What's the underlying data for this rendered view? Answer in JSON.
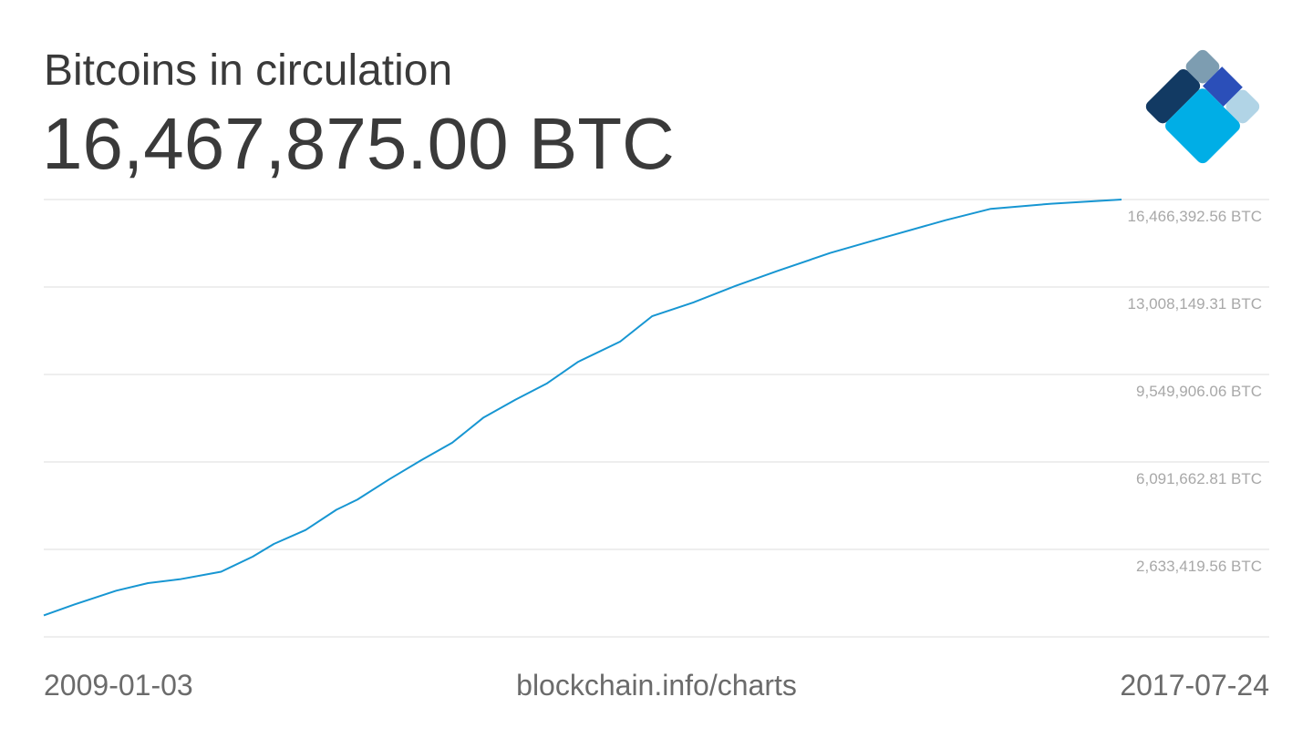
{
  "header": {
    "title": "Bitcoins in circulation",
    "value": "16,467,875.00 BTC"
  },
  "footer": {
    "start_date": "2009-01-03",
    "source": "blockchain.info/charts",
    "end_date": "2017-07-24"
  },
  "logo": {
    "icon": "blockchain-logo-icon",
    "colors": [
      "#7d9db1",
      "#123a63",
      "#2b4fb9",
      "#00aee6",
      "#b1d4e6"
    ]
  },
  "colors": {
    "line": "#1796d2",
    "grid": "#dddddd",
    "tick_text": "#a8a8a8",
    "text": "#3a3a3a",
    "footer_text": "#6b6b6b"
  },
  "chart_data": {
    "type": "line",
    "title": "Bitcoins in circulation",
    "xlabel": "",
    "ylabel": "",
    "xlim": [
      "2009-01-03",
      "2017-07-24"
    ],
    "ylim": [
      -825000,
      16466392.56
    ],
    "grid": true,
    "legend": "none",
    "y_ticks": [
      {
        "value": 16466392.56,
        "label": "16,466,392.56 BTC"
      },
      {
        "value": 13008149.31,
        "label": "13,008,149.31 BTC"
      },
      {
        "value": 9549906.06,
        "label": "9,549,906.06 BTC"
      },
      {
        "value": 6091662.81,
        "label": "6,091,662.81 BTC"
      },
      {
        "value": 2633419.56,
        "label": "2,633,419.56 BTC"
      }
    ],
    "series": [
      {
        "x": [
          "2009-01-03",
          "2009-04-01",
          "2009-08-01",
          "2009-11-01",
          "2010-02-01",
          "2010-06-01",
          "2010-09-01",
          "2010-11-01",
          "2011-02-01",
          "2011-05-01",
          "2011-07-01",
          "2011-10-01",
          "2012-01-01",
          "2012-04-01",
          "2012-07-01",
          "2012-10-01",
          "2013-01-01",
          "2013-04-01",
          "2013-08-01",
          "2013-11-01",
          "2014-03-01",
          "2014-07-01",
          "2014-11-01",
          "2015-04-01",
          "2015-09-01",
          "2016-03-01",
          "2016-07-10",
          "2017-01-01",
          "2017-07-24"
        ],
        "y": [
          25000,
          450000,
          1000000,
          1300000,
          1450000,
          1750000,
          2350000,
          2850000,
          3400000,
          4200000,
          4600000,
          5400000,
          6150000,
          6850000,
          7850000,
          8550000,
          9200000,
          10050000,
          10850000,
          11850000,
          12400000,
          13050000,
          13650000,
          14350000,
          14950000,
          15650000,
          16100000,
          16300000,
          16467875
        ]
      }
    ]
  }
}
